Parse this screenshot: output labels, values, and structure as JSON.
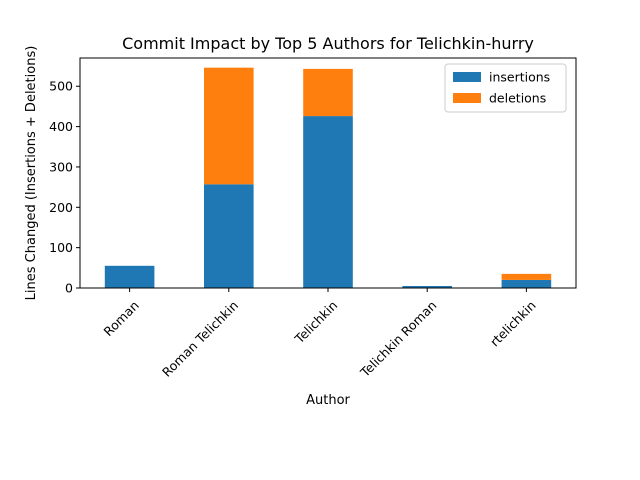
{
  "chart_data": {
    "type": "bar",
    "stacked": true,
    "title": "Commit Impact by Top 5 Authors for Telichkin-hurry",
    "xlabel": "Author",
    "ylabel": "Lines Changed (Insertions + Deletions)",
    "categories": [
      "Roman",
      "Roman Telichkin",
      "Telichkin",
      "Telichkin Roman",
      "rtelichkin"
    ],
    "series": [
      {
        "name": "insertions",
        "color": "#1f77b4",
        "values": [
          55,
          257,
          426,
          5,
          20
        ]
      },
      {
        "name": "deletions",
        "color": "#ff7f0e",
        "values": [
          0,
          289,
          117,
          0,
          15
        ]
      }
    ],
    "ylim": [
      0,
      570
    ],
    "yticks": [
      0,
      100,
      200,
      300,
      400,
      500
    ],
    "legend_position": "top-right",
    "grid": false
  }
}
